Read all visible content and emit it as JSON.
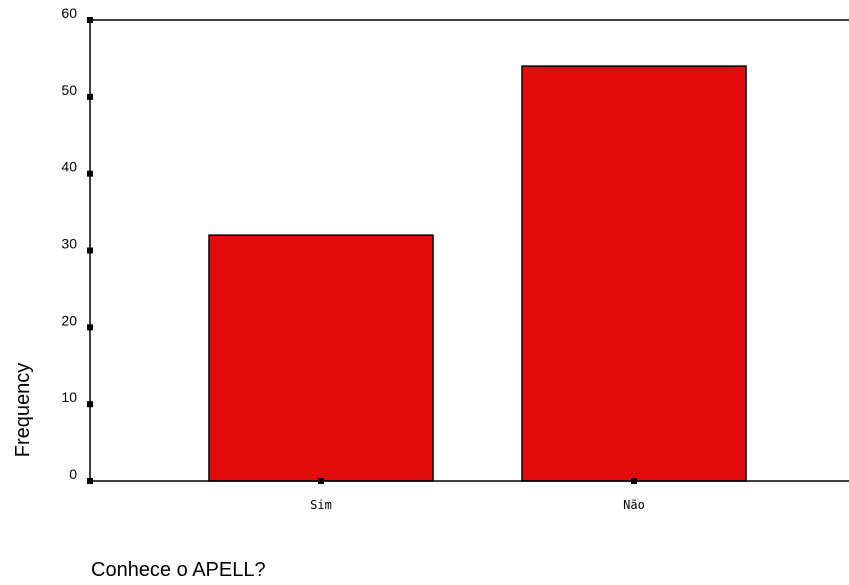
{
  "chart_data": {
    "type": "bar",
    "categories": [
      "Sim",
      "Não"
    ],
    "values": [
      32,
      54
    ],
    "xlabel": "Conhece o APELL?",
    "ylabel": "Frequency",
    "ylim": [
      0,
      60
    ],
    "yticks": [
      0,
      10,
      20,
      30,
      40,
      50,
      60
    ],
    "bar_color": "#e30c0c",
    "bar_edge_color": "#000000",
    "grid": false,
    "legend": "none"
  }
}
